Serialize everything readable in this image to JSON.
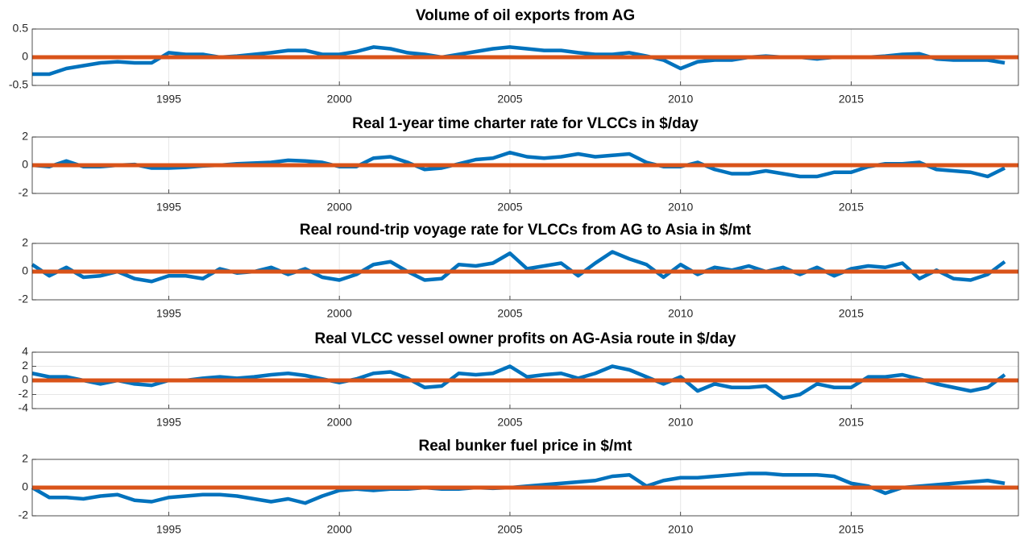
{
  "chart_data": [
    {
      "type": "line",
      "title": "Volume of oil exports from AG",
      "x": [
        1991,
        1991.5,
        1992,
        1992.5,
        1993,
        1993.5,
        1994,
        1994.5,
        1995,
        1995.5,
        1996,
        1996.5,
        1997,
        1997.5,
        1998,
        1998.5,
        1999,
        1999.5,
        2000,
        2000.5,
        2001,
        2001.5,
        2002,
        2002.5,
        2003,
        2003.5,
        2004,
        2004.5,
        2005,
        2005.5,
        2006,
        2006.5,
        2007,
        2007.5,
        2008,
        2008.5,
        2009,
        2009.5,
        2010,
        2010.5,
        2011,
        2011.5,
        2012,
        2012.5,
        2013,
        2013.5,
        2014,
        2014.5,
        2015,
        2015.5,
        2016,
        2016.5,
        2017,
        2017.5,
        2018,
        2018.5,
        2019,
        2019.5
      ],
      "values": [
        -0.3,
        -0.3,
        -0.2,
        -0.15,
        -0.1,
        -0.08,
        -0.1,
        -0.1,
        0.08,
        0.05,
        0.05,
        0,
        0.02,
        0.05,
        0.08,
        0.12,
        0.12,
        0.05,
        0.05,
        0.1,
        0.18,
        0.15,
        0.08,
        0.05,
        0,
        0.05,
        0.1,
        0.15,
        0.18,
        0.15,
        0.12,
        0.12,
        0.08,
        0.05,
        0.05,
        0.08,
        0.02,
        -0.05,
        -0.2,
        -0.08,
        -0.05,
        -0.05,
        0,
        0.02,
        0,
        0,
        -0.03,
        0,
        0,
        0,
        0.02,
        0.05,
        0.06,
        -0.03,
        -0.05,
        -0.05,
        -0.05,
        -0.1
      ],
      "color": "#0072bd",
      "reference_line": 0,
      "reference_color": "#d95319",
      "xlim": [
        1991,
        2019.9
      ],
      "xticks": [
        1995,
        2000,
        2005,
        2010,
        2015
      ],
      "ylim": [
        -0.5,
        0.5
      ],
      "yticks": [
        -0.5,
        0,
        0.5
      ],
      "grid": true
    },
    {
      "type": "line",
      "title": "Real 1-year time charter rate for VLCCs in $/day",
      "x": [
        1991,
        1991.5,
        1992,
        1992.5,
        1993,
        1993.5,
        1994,
        1994.5,
        1995,
        1995.5,
        1996,
        1996.5,
        1997,
        1997.5,
        1998,
        1998.5,
        1999,
        1999.5,
        2000,
        2000.5,
        2001,
        2001.5,
        2002,
        2002.5,
        2003,
        2003.5,
        2004,
        2004.5,
        2005,
        2005.5,
        2006,
        2006.5,
        2007,
        2007.5,
        2008,
        2008.5,
        2009,
        2009.5,
        2010,
        2010.5,
        2011,
        2011.5,
        2012,
        2012.5,
        2013,
        2013.5,
        2014,
        2014.5,
        2015,
        2015.5,
        2016,
        2016.5,
        2017,
        2017.5,
        2018,
        2018.5,
        2019,
        2019.5
      ],
      "values": [
        0,
        -0.1,
        0.3,
        -0.1,
        -0.1,
        0,
        0.05,
        -0.2,
        -0.2,
        -0.15,
        -0.05,
        0,
        0.1,
        0.15,
        0.2,
        0.35,
        0.3,
        0.2,
        -0.1,
        -0.1,
        0.5,
        0.6,
        0.2,
        -0.3,
        -0.2,
        0.1,
        0.4,
        0.5,
        0.9,
        0.6,
        0.5,
        0.6,
        0.8,
        0.6,
        0.7,
        0.8,
        0.2,
        -0.1,
        -0.1,
        0.2,
        -0.3,
        -0.6,
        -0.6,
        -0.4,
        -0.6,
        -0.8,
        -0.8,
        -0.5,
        -0.5,
        -0.1,
        0.1,
        0.1,
        0.2,
        -0.3,
        -0.4,
        -0.5,
        -0.8,
        -0.2
      ],
      "color": "#0072bd",
      "reference_line": 0,
      "reference_color": "#d95319",
      "xlim": [
        1991,
        2019.9
      ],
      "xticks": [
        1995,
        2000,
        2005,
        2010,
        2015
      ],
      "ylim": [
        -2,
        2
      ],
      "yticks": [
        -2,
        0,
        2
      ],
      "grid": true
    },
    {
      "type": "line",
      "title": "Real round-trip voyage rate for VLCCs from AG to Asia in $/mt",
      "x": [
        1991,
        1991.5,
        1992,
        1992.5,
        1993,
        1993.5,
        1994,
        1994.5,
        1995,
        1995.5,
        1996,
        1996.5,
        1997,
        1997.5,
        1998,
        1998.5,
        1999,
        1999.5,
        2000,
        2000.5,
        2001,
        2001.5,
        2002,
        2002.5,
        2003,
        2003.5,
        2004,
        2004.5,
        2005,
        2005.5,
        2006,
        2006.5,
        2007,
        2007.5,
        2008,
        2008.5,
        2009,
        2009.5,
        2010,
        2010.5,
        2011,
        2011.5,
        2012,
        2012.5,
        2013,
        2013.5,
        2014,
        2014.5,
        2015,
        2015.5,
        2016,
        2016.5,
        2017,
        2017.5,
        2018,
        2018.5,
        2019,
        2019.5
      ],
      "values": [
        0.5,
        -0.3,
        0.3,
        -0.4,
        -0.3,
        0,
        -0.5,
        -0.7,
        -0.3,
        -0.3,
        -0.5,
        0.2,
        -0.1,
        0,
        0.3,
        -0.2,
        0.2,
        -0.4,
        -0.6,
        -0.2,
        0.5,
        0.7,
        0,
        -0.6,
        -0.5,
        0.5,
        0.4,
        0.6,
        1.3,
        0.2,
        0.4,
        0.6,
        -0.3,
        0.6,
        1.4,
        0.9,
        0.5,
        -0.4,
        0.5,
        -0.2,
        0.3,
        0.1,
        0.4,
        0,
        0.3,
        -0.2,
        0.3,
        -0.3,
        0.2,
        0.4,
        0.3,
        0.6,
        -0.5,
        0.1,
        -0.5,
        -0.6,
        -0.2,
        0.7
      ],
      "color": "#0072bd",
      "reference_line": 0,
      "reference_color": "#d95319",
      "xlim": [
        1991,
        2019.9
      ],
      "xticks": [
        1995,
        2000,
        2005,
        2010,
        2015
      ],
      "ylim": [
        -2,
        2
      ],
      "yticks": [
        -2,
        0,
        2
      ],
      "grid": true
    },
    {
      "type": "line",
      "title": "Real VLCC vessel owner profits on AG-Asia route in $/day",
      "x": [
        1991,
        1991.5,
        1992,
        1992.5,
        1993,
        1993.5,
        1994,
        1994.5,
        1995,
        1995.5,
        1996,
        1996.5,
        1997,
        1997.5,
        1998,
        1998.5,
        1999,
        1999.5,
        2000,
        2000.5,
        2001,
        2001.5,
        2002,
        2002.5,
        2003,
        2003.5,
        2004,
        2004.5,
        2005,
        2005.5,
        2006,
        2006.5,
        2007,
        2007.5,
        2008,
        2008.5,
        2009,
        2009.5,
        2010,
        2010.5,
        2011,
        2011.5,
        2012,
        2012.5,
        2013,
        2013.5,
        2014,
        2014.5,
        2015,
        2015.5,
        2016,
        2016.5,
        2017,
        2017.5,
        2018,
        2018.5,
        2019,
        2019.5
      ],
      "values": [
        1.0,
        0.5,
        0.5,
        0,
        -0.5,
        0,
        -0.5,
        -0.7,
        0,
        0,
        0.3,
        0.5,
        0.3,
        0.5,
        0.8,
        1.0,
        0.7,
        0.2,
        -0.3,
        0.2,
        1.0,
        1.2,
        0.3,
        -1.0,
        -0.8,
        1.0,
        0.8,
        1.0,
        2.0,
        0.5,
        0.8,
        1.0,
        0.3,
        1.0,
        2.0,
        1.5,
        0.5,
        -0.5,
        0.5,
        -1.5,
        -0.5,
        -1.0,
        -1.0,
        -0.8,
        -2.5,
        -2.0,
        -0.5,
        -1.0,
        -1.0,
        0.5,
        0.5,
        0.8,
        0.2,
        -0.5,
        -1.0,
        -1.5,
        -1.0,
        0.8
      ],
      "color": "#0072bd",
      "reference_line": 0,
      "reference_color": "#d95319",
      "xlim": [
        1991,
        2019.9
      ],
      "xticks": [
        1995,
        2000,
        2005,
        2010,
        2015
      ],
      "ylim": [
        -4,
        4
      ],
      "yticks": [
        -4,
        -2,
        0,
        2,
        4
      ],
      "grid": true
    },
    {
      "type": "line",
      "title": "Real bunker fuel price in $/mt",
      "x": [
        1991,
        1991.5,
        1992,
        1992.5,
        1993,
        1993.5,
        1994,
        1994.5,
        1995,
        1995.5,
        1996,
        1996.5,
        1997,
        1997.5,
        1998,
        1998.5,
        1999,
        1999.5,
        2000,
        2000.5,
        2001,
        2001.5,
        2002,
        2002.5,
        2003,
        2003.5,
        2004,
        2004.5,
        2005,
        2005.5,
        2006,
        2006.5,
        2007,
        2007.5,
        2008,
        2008.5,
        2009,
        2009.5,
        2010,
        2010.5,
        2011,
        2011.5,
        2012,
        2012.5,
        2013,
        2013.5,
        2014,
        2014.5,
        2015,
        2015.5,
        2016,
        2016.5,
        2017,
        2017.5,
        2018,
        2018.5,
        2019,
        2019.5
      ],
      "values": [
        0,
        -0.7,
        -0.7,
        -0.8,
        -0.6,
        -0.5,
        -0.9,
        -1.0,
        -0.7,
        -0.6,
        -0.5,
        -0.5,
        -0.6,
        -0.8,
        -1.0,
        -0.8,
        -1.1,
        -0.6,
        -0.2,
        -0.1,
        -0.2,
        -0.1,
        -0.1,
        0,
        -0.1,
        -0.1,
        0,
        -0.05,
        0,
        0.1,
        0.2,
        0.3,
        0.4,
        0.5,
        0.8,
        0.9,
        0.1,
        0.5,
        0.7,
        0.7,
        0.8,
        0.9,
        1.0,
        1.0,
        0.9,
        0.9,
        0.9,
        0.8,
        0.3,
        0.1,
        -0.4,
        0,
        0.1,
        0.2,
        0.3,
        0.4,
        0.5,
        0.3
      ],
      "color": "#0072bd",
      "reference_line": 0,
      "reference_color": "#d95319",
      "xlim": [
        1991,
        2019.9
      ],
      "xticks": [
        1995,
        2000,
        2005,
        2010,
        2015
      ],
      "ylim": [
        -2,
        2
      ],
      "yticks": [
        -2,
        0,
        2
      ],
      "grid": true
    }
  ]
}
